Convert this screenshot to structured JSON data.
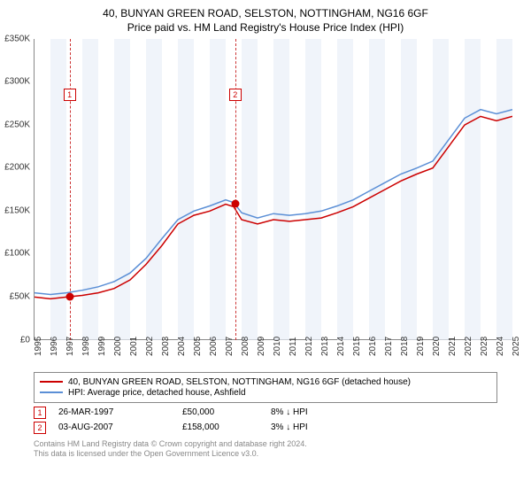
{
  "title": "40, BUNYAN GREEN ROAD, SELSTON, NOTTINGHAM, NG16 6GF",
  "subtitle": "Price paid vs. HM Land Registry's House Price Index (HPI)",
  "chart": {
    "type": "line",
    "background_color": "#ffffff",
    "band_color": "#eaf0f8",
    "grid_color": "#888888",
    "ylabel_prefix": "£",
    "ylim": [
      0,
      350000
    ],
    "ytick_step": 50000,
    "ytick_labels": [
      "£0",
      "£50K",
      "£100K",
      "£150K",
      "£200K",
      "£250K",
      "£300K",
      "£350K"
    ],
    "xlim": [
      1995,
      2025
    ],
    "xtick_step": 1,
    "series": [
      {
        "name": "40, BUNYAN GREEN ROAD, SELSTON, NOTTINGHAM, NG16 6GF (detached house)",
        "color": "#cc0000",
        "line_width": 1.5,
        "points": [
          [
            1995,
            50000
          ],
          [
            1996,
            48000
          ],
          [
            1997,
            50000
          ],
          [
            1998,
            52000
          ],
          [
            1999,
            55000
          ],
          [
            2000,
            60000
          ],
          [
            2001,
            70000
          ],
          [
            2002,
            88000
          ],
          [
            2003,
            110000
          ],
          [
            2004,
            135000
          ],
          [
            2005,
            145000
          ],
          [
            2006,
            150000
          ],
          [
            2007,
            158000
          ],
          [
            2007.5,
            155000
          ],
          [
            2008,
            140000
          ],
          [
            2009,
            135000
          ],
          [
            2010,
            140000
          ],
          [
            2011,
            138000
          ],
          [
            2012,
            140000
          ],
          [
            2013,
            142000
          ],
          [
            2014,
            148000
          ],
          [
            2015,
            155000
          ],
          [
            2016,
            165000
          ],
          [
            2017,
            175000
          ],
          [
            2018,
            185000
          ],
          [
            2019,
            193000
          ],
          [
            2020,
            200000
          ],
          [
            2021,
            225000
          ],
          [
            2022,
            250000
          ],
          [
            2023,
            260000
          ],
          [
            2024,
            255000
          ],
          [
            2025,
            260000
          ]
        ]
      },
      {
        "name": "HPI: Average price, detached house, Ashfield",
        "color": "#5b8fd6",
        "line_width": 1.5,
        "points": [
          [
            1995,
            55000
          ],
          [
            1996,
            53000
          ],
          [
            1997,
            55000
          ],
          [
            1998,
            58000
          ],
          [
            1999,
            62000
          ],
          [
            2000,
            68000
          ],
          [
            2001,
            78000
          ],
          [
            2002,
            95000
          ],
          [
            2003,
            118000
          ],
          [
            2004,
            140000
          ],
          [
            2005,
            150000
          ],
          [
            2006,
            156000
          ],
          [
            2007,
            163000
          ],
          [
            2007.5,
            160000
          ],
          [
            2008,
            148000
          ],
          [
            2009,
            142000
          ],
          [
            2010,
            147000
          ],
          [
            2011,
            145000
          ],
          [
            2012,
            147000
          ],
          [
            2013,
            150000
          ],
          [
            2014,
            156000
          ],
          [
            2015,
            163000
          ],
          [
            2016,
            173000
          ],
          [
            2017,
            183000
          ],
          [
            2018,
            193000
          ],
          [
            2019,
            200000
          ],
          [
            2020,
            208000
          ],
          [
            2021,
            233000
          ],
          [
            2022,
            258000
          ],
          [
            2023,
            268000
          ],
          [
            2024,
            263000
          ],
          [
            2025,
            268000
          ]
        ]
      }
    ],
    "markers": [
      {
        "num": "1",
        "year": 1997.2,
        "price": 50000,
        "label_y": 56
      },
      {
        "num": "2",
        "year": 2007.6,
        "price": 158000,
        "label_y": 56
      }
    ]
  },
  "legend": {
    "items": [
      {
        "label": "40, BUNYAN GREEN ROAD, SELSTON, NOTTINGHAM, NG16 6GF (detached house)",
        "color": "#cc0000"
      },
      {
        "label": "HPI: Average price, detached house, Ashfield",
        "color": "#5b8fd6"
      }
    ]
  },
  "datapoints": [
    {
      "num": "1",
      "date": "26-MAR-1997",
      "price": "£50,000",
      "pct": "8% ↓ HPI"
    },
    {
      "num": "2",
      "date": "03-AUG-2007",
      "price": "£158,000",
      "pct": "3% ↓ HPI"
    }
  ],
  "footer": {
    "line1": "Contains HM Land Registry data © Crown copyright and database right 2024.",
    "line2": "This data is licensed under the Open Government Licence v3.0."
  }
}
